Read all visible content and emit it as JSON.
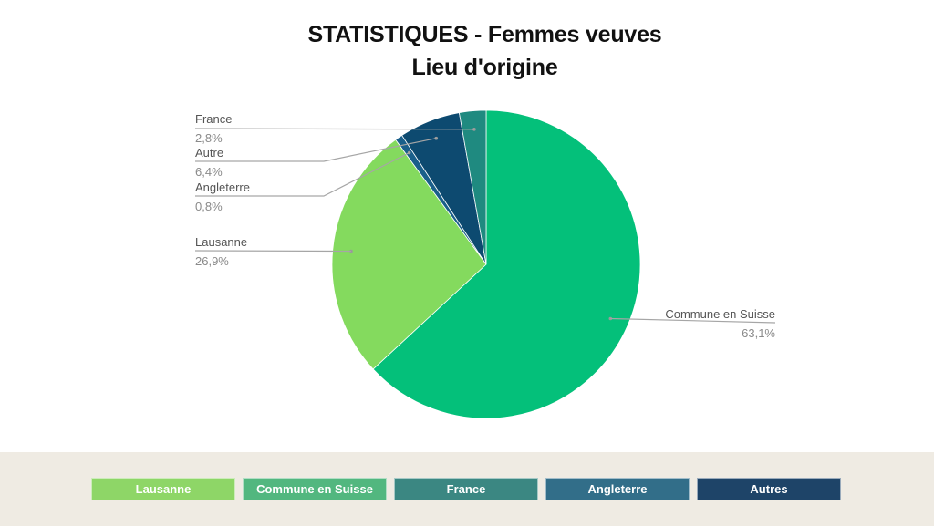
{
  "title": {
    "line1": "STATISTIQUES - Femmes veuves",
    "line2": "Lieu d'origine"
  },
  "chart_data": {
    "type": "pie",
    "slices": [
      {
        "label": "Commune en Suisse",
        "value": 63.1,
        "display": "63,1%",
        "color": "#04c07a"
      },
      {
        "label": "Lausanne",
        "value": 26.9,
        "display": "26,9%",
        "color": "#84da5e"
      },
      {
        "label": "Angleterre",
        "value": 0.8,
        "display": "0,8%",
        "color": "#1a5f8a"
      },
      {
        "label": "Autre",
        "value": 6.4,
        "display": "6,4%",
        "color": "#0d4a70"
      },
      {
        "label": "France",
        "value": 2.8,
        "display": "2,8%",
        "color": "#1f8a80"
      }
    ],
    "start_angle_deg": 0,
    "direction": "clockwise"
  },
  "legend": [
    {
      "label": "Lausanne",
      "color": "#8ed667"
    },
    {
      "label": "Commune en Suisse",
      "color": "#52b77f"
    },
    {
      "label": "France",
      "color": "#3b8782"
    },
    {
      "label": "Angleterre",
      "color": "#326e89"
    },
    {
      "label": "Autres",
      "color": "#1e4468"
    }
  ]
}
